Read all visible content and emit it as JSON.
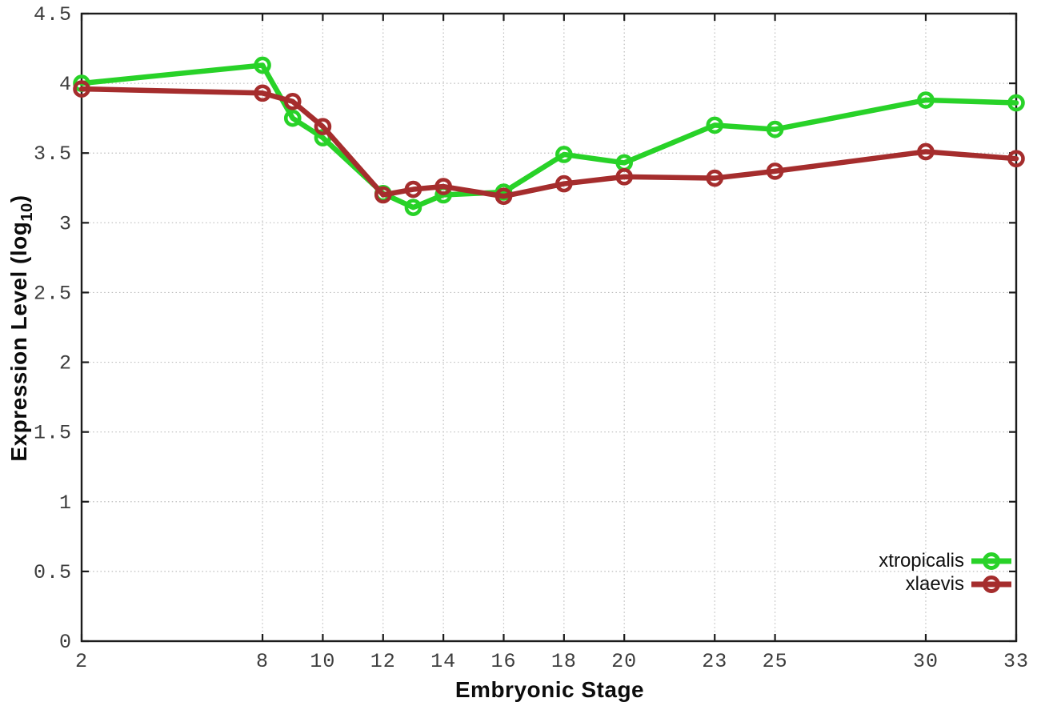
{
  "chart_data": {
    "type": "line",
    "title": "",
    "xlabel": "Embryonic Stage",
    "ylabel": "Expression Level (log10)",
    "ylabel_parts": {
      "pre": "Expression Level (log",
      "sub": "10",
      "post": ")"
    },
    "x": [
      2,
      8,
      9,
      10,
      12,
      13,
      14,
      16,
      18,
      20,
      23,
      25,
      30,
      33
    ],
    "xticks": [
      2,
      8,
      10,
      12,
      14,
      16,
      18,
      20,
      23,
      25,
      30,
      33
    ],
    "yticks": [
      0,
      0.5,
      1,
      1.5,
      2,
      2.5,
      3,
      3.5,
      4,
      4.5
    ],
    "xlim": [
      2,
      33
    ],
    "ylim": [
      0,
      4.5
    ],
    "grid": true,
    "marker": "open-circle",
    "legend_position": "bottom-right",
    "series": [
      {
        "name": "xtropicalis",
        "color": "#28d228",
        "values": [
          4.0,
          4.13,
          3.75,
          3.61,
          3.21,
          3.11,
          3.2,
          3.22,
          3.49,
          3.43,
          3.7,
          3.67,
          3.88,
          3.86
        ]
      },
      {
        "name": "xlaevis",
        "color": "#a52d2d",
        "values": [
          3.96,
          3.93,
          3.87,
          3.69,
          3.2,
          3.24,
          3.26,
          3.19,
          3.28,
          3.33,
          3.32,
          3.37,
          3.51,
          3.46
        ]
      }
    ]
  },
  "style": {
    "background": "#ffffff",
    "axis_color": "#1c1c1c",
    "grid_color": "#bcbcbc",
    "tick_label_color": "#3d3d3d"
  }
}
